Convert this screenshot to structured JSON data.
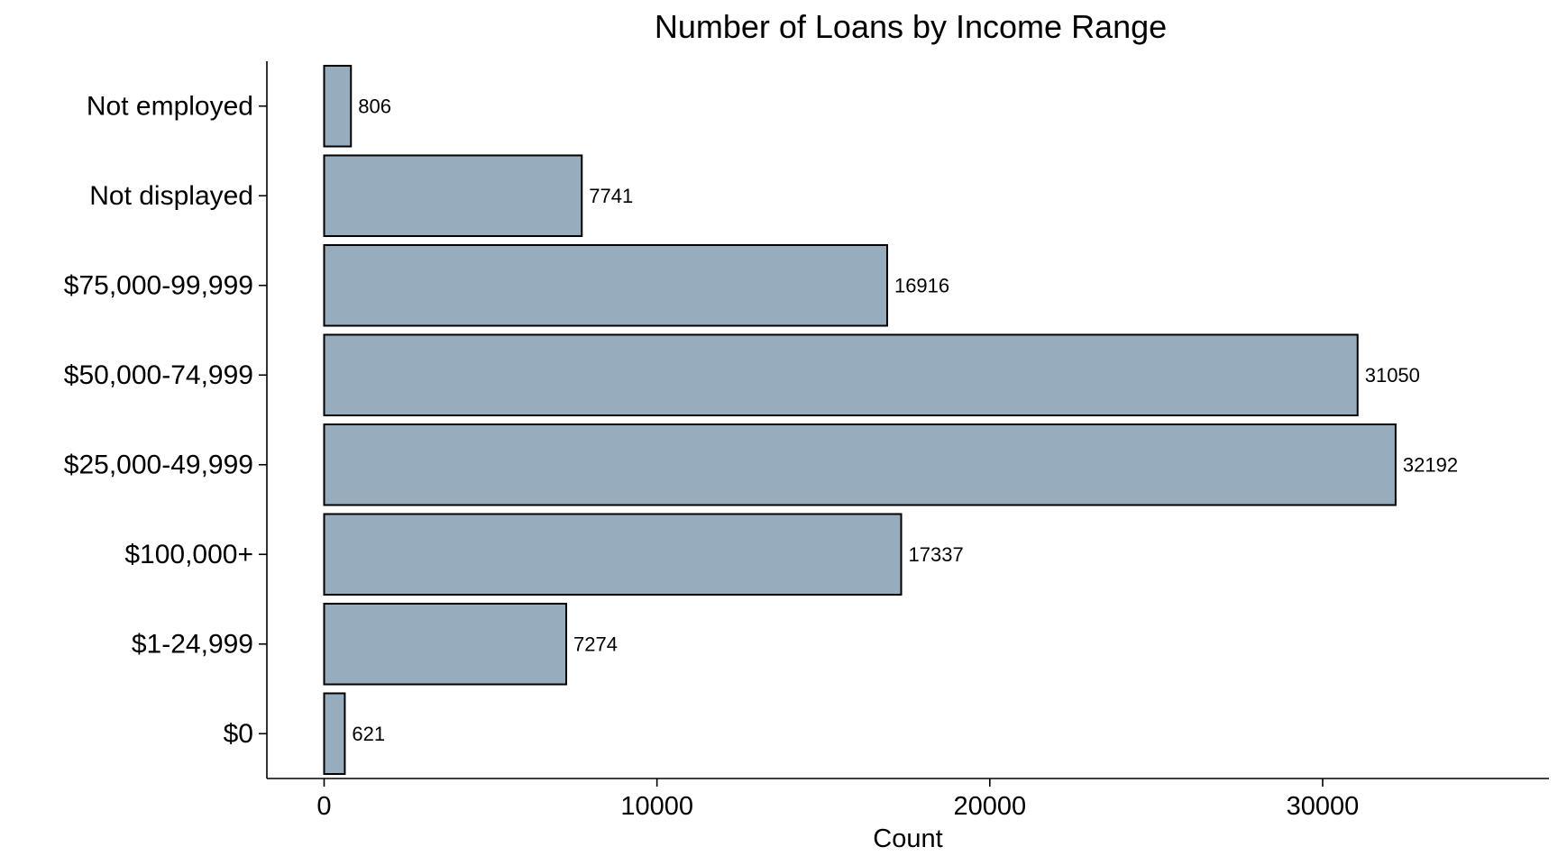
{
  "chart_data": {
    "type": "bar",
    "orientation": "horizontal",
    "title": "Number of Loans by Income Range",
    "xlabel": "Count",
    "ylabel": "",
    "categories": [
      "$0",
      "$1-24,999",
      "$100,000+",
      "$25,000-49,999",
      "$50,000-74,999",
      "$75,000-99,999",
      "Not displayed",
      "Not employed"
    ],
    "values": [
      621,
      7274,
      17337,
      32192,
      31050,
      16916,
      7741,
      806
    ],
    "data_labels": [
      "621",
      "7274",
      "17337",
      "32192",
      "31050",
      "16916",
      "7741",
      "806"
    ],
    "xlim": [
      -1720,
      36800
    ],
    "xticks": [
      0,
      10000,
      20000,
      30000
    ],
    "xtick_labels": [
      "0",
      "10000",
      "20000",
      "30000"
    ],
    "grid": false,
    "legend": "none",
    "colors": {
      "bar_fill": "#97acbc",
      "bar_outline": "#000000",
      "background": "#ffffff"
    }
  }
}
